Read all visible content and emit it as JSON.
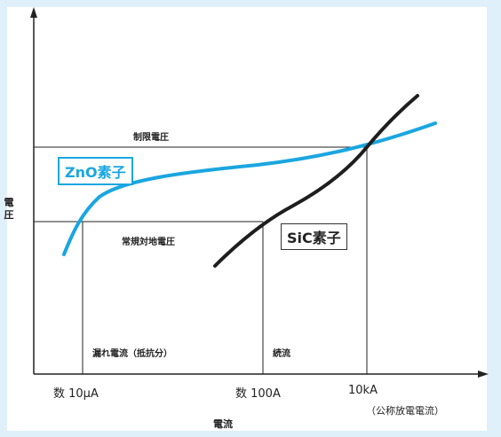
{
  "chart_data": {
    "type": "line",
    "xlabel": "電流",
    "ylabel": "電圧",
    "x_ticks": [
      "数 10μA",
      "数 100A",
      "10kA"
    ],
    "x_tick_sublabel": "（公称放電電流）",
    "series": [
      {
        "name": "ZnO素子",
        "color": "#1aa6e0"
      },
      {
        "name": "SiC素子",
        "color": "#1e1e1e"
      }
    ],
    "annotations": {
      "clamp_voltage": "制限電圧",
      "ground_voltage": "常規対地電圧",
      "leakage_current": "漏れ電流（抵抗分）",
      "follow_current": "続流"
    }
  },
  "colors": {
    "zno": "#1aa6e0",
    "sic": "#1e1e1e",
    "background": "#dff0fa"
  }
}
